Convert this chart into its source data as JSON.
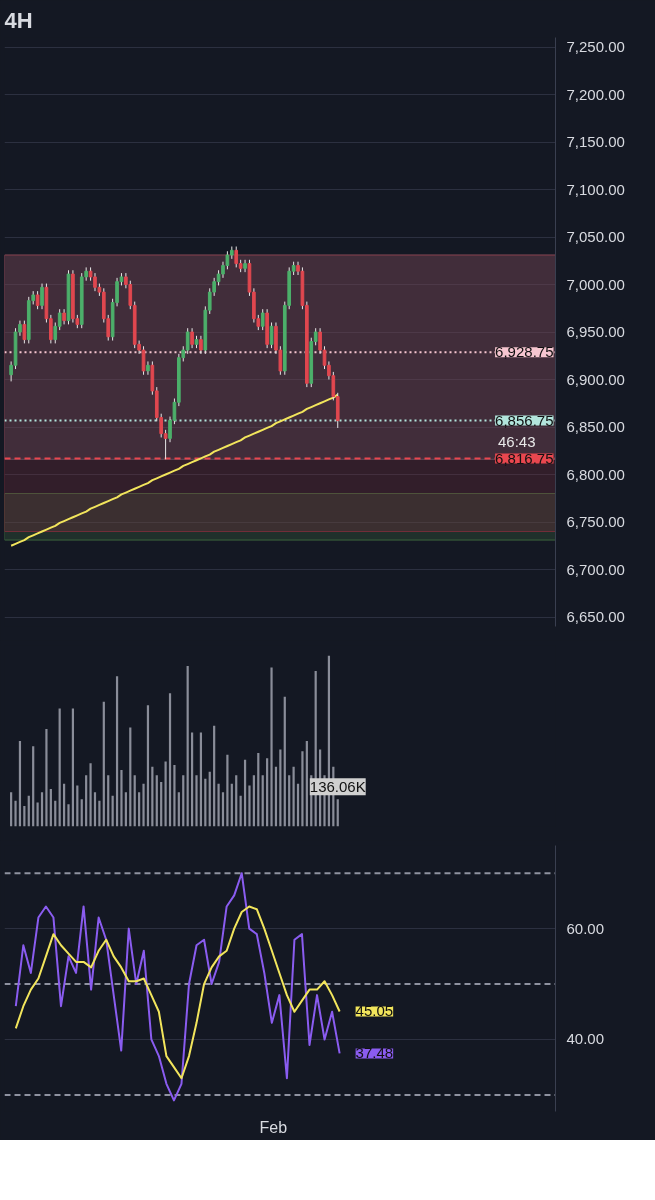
{
  "chart_data": [
    {
      "type": "candlestick",
      "subtitle": "4H",
      "categories": [
        null,
        null,
        null,
        null,
        null,
        null,
        null,
        null,
        null,
        null,
        null,
        null,
        null,
        null,
        null,
        null,
        null,
        null,
        null,
        null,
        null,
        null,
        null,
        null,
        null,
        null,
        null,
        null,
        null,
        null,
        null,
        null,
        null,
        null,
        null,
        null,
        null,
        null,
        null,
        null,
        null,
        null,
        null,
        null,
        null,
        null,
        null,
        null,
        null,
        null,
        null,
        null,
        null,
        null,
        null,
        null,
        null,
        null,
        null,
        null,
        null,
        null,
        null,
        null,
        null,
        null,
        null,
        null,
        null,
        null,
        null,
        null,
        null,
        null,
        null
      ],
      "ohlc": [
        [
          6905,
          6919,
          6898,
          6915
        ],
        [
          6915,
          6954,
          6911,
          6950
        ],
        [
          6950,
          6962,
          6946,
          6958
        ],
        [
          6958,
          6962,
          6938,
          6942
        ],
        [
          6942,
          6987,
          6938,
          6983
        ],
        [
          6983,
          6993,
          6979,
          6989
        ],
        [
          6989,
          6993,
          6974,
          6978
        ],
        [
          6978,
          7001,
          6974,
          6997
        ],
        [
          6997,
          7001,
          6960,
          6964
        ],
        [
          6964,
          6968,
          6938,
          6942
        ],
        [
          6942,
          6960,
          6938,
          6956
        ],
        [
          6956,
          6974,
          6952,
          6970
        ],
        [
          6970,
          6974,
          6958,
          6962
        ],
        [
          6962,
          7015,
          6958,
          7011
        ],
        [
          7011,
          7015,
          6960,
          6964
        ],
        [
          6964,
          6968,
          6954,
          6958
        ],
        [
          6958,
          7012,
          6954,
          7008
        ],
        [
          7008,
          7018,
          7004,
          7014
        ],
        [
          7014,
          7018,
          7004,
          7008
        ],
        [
          7008,
          7012,
          6993,
          6997
        ],
        [
          6997,
          7001,
          6988,
          6992
        ],
        [
          6992,
          6996,
          6960,
          6964
        ],
        [
          6964,
          6968,
          6941,
          6945
        ],
        [
          6945,
          6985,
          6941,
          6981
        ],
        [
          6981,
          7007,
          6977,
          7003
        ],
        [
          7003,
          7012,
          6999,
          7008
        ],
        [
          7008,
          7012,
          6996,
          7000
        ],
        [
          7000,
          7004,
          6974,
          6978
        ],
        [
          6978,
          6982,
          6933,
          6937
        ],
        [
          6937,
          6941,
          6927,
          6931
        ],
        [
          6931,
          6935,
          6905,
          6909
        ],
        [
          6909,
          6919,
          6905,
          6915
        ],
        [
          6915,
          6919,
          6884,
          6888
        ],
        [
          6888,
          6892,
          6856,
          6860
        ],
        [
          6860,
          6864,
          6839,
          6843
        ],
        [
          6843,
          6847,
          6816,
          6838
        ],
        [
          6838,
          6861,
          6834,
          6857
        ],
        [
          6857,
          6880,
          6853,
          6876
        ],
        [
          6876,
          6927,
          6872,
          6923
        ],
        [
          6923,
          6935,
          6919,
          6931
        ],
        [
          6931,
          6954,
          6927,
          6950
        ],
        [
          6950,
          6954,
          6933,
          6937
        ],
        [
          6937,
          6946,
          6933,
          6942
        ],
        [
          6942,
          6946,
          6927,
          6931
        ],
        [
          6931,
          6977,
          6927,
          6973
        ],
        [
          6973,
          6996,
          6969,
          6992
        ],
        [
          6992,
          7007,
          6988,
          7003
        ],
        [
          7003,
          7015,
          6999,
          7011
        ],
        [
          7011,
          7024,
          7007,
          7020
        ],
        [
          7020,
          7035,
          7016,
          7031
        ],
        [
          7031,
          7040,
          7027,
          7036
        ],
        [
          7036,
          7040,
          7018,
          7022
        ],
        [
          7022,
          7026,
          7013,
          7017
        ],
        [
          7017,
          7026,
          7013,
          7022
        ],
        [
          7022,
          7026,
          6988,
          6992
        ],
        [
          6992,
          6996,
          6960,
          6964
        ],
        [
          6964,
          6968,
          6952,
          6956
        ],
        [
          6956,
          6974,
          6952,
          6970
        ],
        [
          6970,
          6974,
          6933,
          6937
        ],
        [
          6937,
          6960,
          6933,
          6956
        ],
        [
          6956,
          6960,
          6927,
          6931
        ],
        [
          6931,
          6935,
          6905,
          6909
        ],
        [
          6909,
          6982,
          6905,
          6978
        ],
        [
          6978,
          7018,
          6974,
          7014
        ],
        [
          7014,
          7024,
          7010,
          7020
        ],
        [
          7020,
          7024,
          7010,
          7014
        ],
        [
          7014,
          7018,
          6974,
          6978
        ],
        [
          6978,
          6982,
          6892,
          6896
        ],
        [
          6896,
          6944,
          6892,
          6940
        ],
        [
          6940,
          6954,
          6936,
          6950
        ],
        [
          6950,
          6954,
          6927,
          6931
        ],
        [
          6931,
          6935,
          6911,
          6915
        ],
        [
          6915,
          6919,
          6900,
          6904
        ],
        [
          6904,
          6908,
          6878,
          6882
        ],
        [
          6882,
          6886,
          6849,
          6856.75
        ]
      ],
      "series": [
        {
          "type": "line",
          "color": "#f2e55c",
          "values": [
            6725,
            6727,
            6729,
            6731,
            6734,
            6736,
            6738,
            6740,
            6742,
            6744,
            6746,
            6749,
            6751,
            6753,
            6755,
            6757,
            6759,
            6761,
            6764,
            6766,
            6768,
            6770,
            6772,
            6774,
            6776,
            6779,
            6781,
            6783,
            6785,
            6787,
            6789,
            6791,
            6794,
            6796,
            6798,
            6800,
            6802,
            6804,
            6806,
            6809,
            6811,
            6813,
            6815,
            6817,
            6819,
            6821,
            6824,
            6826,
            6828,
            6830,
            6832,
            6834,
            6836,
            6839,
            6841,
            6843,
            6845,
            6847,
            6849,
            6851,
            6854,
            6856,
            6858,
            6860,
            6862,
            6864,
            6866,
            6869,
            6871,
            6873,
            6875,
            6877,
            6879,
            6881,
            6884
          ]
        }
      ],
      "ylim": [
        6640,
        7260
      ],
      "yticks": [
        {
          "value": 6650,
          "label": "6,650.00"
        },
        {
          "value": 6700,
          "label": "6,700.00"
        },
        {
          "value": 6750,
          "label": "6,750.00"
        },
        {
          "value": 6800,
          "label": "6,800.00"
        },
        {
          "value": 6850,
          "label": "6,850.00"
        },
        {
          "value": 6900,
          "label": "6,900.00"
        },
        {
          "value": 6950,
          "label": "6,950.00"
        },
        {
          "value": 7000,
          "label": "7,000.00"
        },
        {
          "value": 7050,
          "label": "7,050.00"
        },
        {
          "value": 7100,
          "label": "7,100.00"
        },
        {
          "value": 7150,
          "label": "7,150.00"
        },
        {
          "value": 7200,
          "label": "7,200.00"
        },
        {
          "value": 7250,
          "label": "7,250.00"
        }
      ],
      "tick_labels": "y",
      "grid": "y",
      "ref_lines": [
        {
          "axis": "y",
          "value": 6928.75,
          "label": "6,928.75",
          "color": "#f6c6d0",
          "line_style": "dotted"
        },
        {
          "axis": "y",
          "value": 6856.75,
          "label": "6,856.75",
          "color": "#b2e5dc",
          "line_style": "dotted"
        },
        {
          "axis": "y",
          "value": 6816.75,
          "label": "6,816.75",
          "color": "#e8474f",
          "line_style": "dashed"
        }
      ],
      "bands": [
        {
          "axis": "y",
          "from": 6816,
          "to": 7031,
          "color": "#5d6170"
        },
        {
          "axis": "y",
          "from": 6731,
          "to": 6780,
          "color": "#3f6b3f"
        },
        {
          "axis": "y",
          "from": 6740,
          "to": 7031,
          "color": "#7a2e3a"
        }
      ],
      "annotations": [
        "46:43"
      ]
    },
    {
      "type": "bar",
      "tick_labels": false,
      "categories": [
        null,
        null,
        null,
        null,
        null,
        null,
        null,
        null,
        null,
        null,
        null,
        null,
        null,
        null,
        null,
        null,
        null,
        null,
        null,
        null,
        null,
        null,
        null,
        null,
        null,
        null,
        null,
        null,
        null,
        null,
        null,
        null,
        null,
        null,
        null,
        null,
        null,
        null,
        null,
        null,
        null,
        null,
        null,
        null,
        null,
        null,
        null,
        null,
        null,
        null,
        null,
        null,
        null,
        null,
        null,
        null,
        null,
        null,
        null,
        null,
        null,
        null,
        null,
        null,
        null,
        null,
        null,
        null,
        null,
        null,
        null,
        null,
        null,
        null,
        null
      ],
      "values": [
        170,
        128,
        425,
        102,
        153,
        400,
        119,
        170,
        485,
        187,
        128,
        587,
        213,
        111,
        587,
        204,
        136,
        255,
        315,
        170,
        128,
        621,
        255,
        153,
        748,
        281,
        170,
        493,
        255,
        170,
        213,
        604,
        298,
        255,
        221,
        323,
        663,
        306,
        170,
        255,
        799,
        468,
        255,
        468,
        238,
        272,
        502,
        213,
        170,
        357,
        213,
        255,
        153,
        332,
        204,
        255,
        366,
        255,
        340,
        791,
        298,
        383,
        646,
        255,
        298,
        213,
        374,
        425,
        255,
        774,
        383,
        255,
        850,
        298,
        136.06
      ],
      "color": "#8a8d99",
      "value_labels": [
        null,
        null,
        null,
        null,
        null,
        null,
        null,
        null,
        null,
        null,
        null,
        null,
        null,
        null,
        null,
        null,
        null,
        null,
        null,
        null,
        null,
        null,
        null,
        null,
        null,
        null,
        null,
        null,
        null,
        null,
        null,
        null,
        null,
        null,
        null,
        null,
        null,
        null,
        null,
        null,
        null,
        null,
        null,
        null,
        null,
        null,
        null,
        null,
        null,
        null,
        null,
        null,
        null,
        null,
        null,
        null,
        null,
        null,
        null,
        null,
        null,
        null,
        null,
        null,
        null,
        null,
        null,
        null,
        null,
        null,
        null,
        null,
        null,
        null,
        "136.06K"
      ]
    },
    {
      "type": "line",
      "ylim": [
        27,
        75
      ],
      "tick_labels": "y",
      "categories": [
        null,
        null,
        null,
        null,
        null,
        null,
        null,
        null,
        null,
        null,
        null,
        null,
        null,
        null,
        null,
        null,
        null,
        null,
        null,
        null,
        null,
        null,
        null,
        null,
        null,
        null,
        null,
        null,
        null,
        null,
        null,
        null,
        null,
        null,
        null,
        null,
        null,
        null,
        null,
        null,
        null,
        null,
        null,
        null
      ],
      "yticks": [
        {
          "value": 40,
          "label": "40.00"
        },
        {
          "value": 60,
          "label": "60.00"
        }
      ],
      "grid": "y",
      "series": [
        {
          "color": "#8a5cf0",
          "values": [
            46,
            57,
            52,
            62,
            64,
            62,
            46,
            55,
            52,
            64,
            49,
            62,
            58,
            48,
            38,
            60,
            50,
            56,
            40,
            37,
            32,
            29,
            32,
            50,
            57,
            58,
            50,
            54,
            64,
            66,
            70,
            60,
            59,
            52,
            43,
            48,
            33,
            58,
            59,
            39,
            48,
            40,
            45,
            37.48
          ],
          "value_labels": [
            null,
            null,
            null,
            null,
            null,
            null,
            null,
            null,
            null,
            null,
            null,
            null,
            null,
            null,
            null,
            null,
            null,
            null,
            null,
            null,
            null,
            null,
            null,
            null,
            null,
            null,
            null,
            null,
            null,
            null,
            null,
            null,
            null,
            null,
            null,
            null,
            null,
            null,
            null,
            null,
            null,
            null,
            null,
            "37.48"
          ]
        },
        {
          "color": "#f2e55c",
          "values": [
            42,
            46,
            49,
            51,
            55,
            59,
            57,
            55.5,
            54,
            54,
            53,
            56,
            58,
            55,
            53,
            50.5,
            50.5,
            51,
            48,
            45,
            37,
            35,
            33,
            37,
            43,
            50,
            53,
            55,
            56,
            60,
            63,
            64,
            63.5,
            60,
            56,
            52,
            48,
            45,
            47,
            49,
            49,
            50.5,
            48,
            45.05
          ],
          "value_labels": [
            null,
            null,
            null,
            null,
            null,
            null,
            null,
            null,
            null,
            null,
            null,
            null,
            null,
            null,
            null,
            null,
            null,
            null,
            null,
            null,
            null,
            null,
            null,
            null,
            null,
            null,
            null,
            null,
            null,
            null,
            null,
            null,
            null,
            null,
            null,
            null,
            null,
            null,
            null,
            null,
            null,
            null,
            null,
            "45.05"
          ]
        }
      ],
      "ref_lines": [
        {
          "axis": "y",
          "value": 70,
          "color": "#8f92a0",
          "line_style": "dashed"
        },
        {
          "axis": "y",
          "value": 50,
          "color": "#8f92a0",
          "line_style": "dashed"
        },
        {
          "axis": "y",
          "value": 30,
          "color": "#8f92a0",
          "line_style": "dashed"
        }
      ],
      "annotations": [
        "Feb"
      ]
    }
  ]
}
